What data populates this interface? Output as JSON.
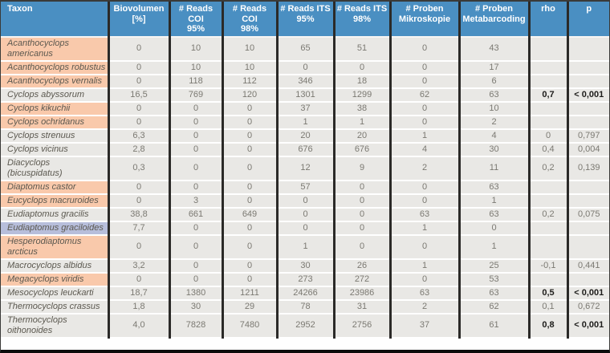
{
  "colors": {
    "header_bg": "#4a8fc2",
    "cell_bg": "#e9e8e5",
    "grid_dark": "#2b2a28",
    "highlight_orange": "#f9c9ab",
    "highlight_blue": "#b7bedb"
  },
  "chart_data": {
    "type": "table",
    "title": "",
    "columns": [
      {
        "label": "Taxon",
        "lines": [
          "Taxon"
        ]
      },
      {
        "label": "Biovolumen [%]",
        "lines": [
          "Biovolumen",
          "[%]"
        ]
      },
      {
        "label": "# Reads COI 95%",
        "lines": [
          "# Reads COI",
          "95%"
        ]
      },
      {
        "label": "# Reads COI 98%",
        "lines": [
          "# Reads COI",
          "98%"
        ]
      },
      {
        "label": "# Reads ITS 95%",
        "lines": [
          "# Reads ITS",
          "95%"
        ]
      },
      {
        "label": "# Reads ITS 98%",
        "lines": [
          "# Reads ITS",
          "98%"
        ]
      },
      {
        "label": "# Proben Mikroskopie",
        "lines": [
          "# Proben",
          "Mikroskopie"
        ]
      },
      {
        "label": "# Proben Metabarcoding",
        "lines": [
          "# Proben",
          "Metabarcoding"
        ]
      },
      {
        "label": "rho",
        "lines": [
          "rho"
        ]
      },
      {
        "label": "p",
        "lines": [
          "p"
        ]
      }
    ],
    "rows": [
      {
        "taxon": "Acanthocyclops americanus",
        "highlight": "orange",
        "values": [
          "0",
          "10",
          "10",
          "65",
          "51",
          "0",
          "43"
        ],
        "rho": "",
        "p": "",
        "bold_stats": false
      },
      {
        "taxon": "Acanthocyclops robustus",
        "highlight": "orange",
        "values": [
          "0",
          "10",
          "10",
          "0",
          "0",
          "0",
          "17"
        ],
        "rho": "",
        "p": "",
        "bold_stats": false
      },
      {
        "taxon": "Acanthocyclops vernalis",
        "highlight": "orange",
        "values": [
          "0",
          "118",
          "112",
          "346",
          "18",
          "0",
          "6"
        ],
        "rho": "",
        "p": "",
        "bold_stats": false
      },
      {
        "taxon": "Cyclops abyssorum",
        "highlight": "none",
        "values": [
          "16,5",
          "769",
          "120",
          "1301",
          "1299",
          "62",
          "63"
        ],
        "rho": "0,7",
        "p": "< 0,001",
        "bold_stats": true
      },
      {
        "taxon": "Cyclops kikuchii",
        "highlight": "orange",
        "values": [
          "0",
          "0",
          "0",
          "37",
          "38",
          "0",
          "10"
        ],
        "rho": "",
        "p": "",
        "bold_stats": false
      },
      {
        "taxon": "Cyclops ochridanus",
        "highlight": "orange",
        "values": [
          "0",
          "0",
          "0",
          "1",
          "1",
          "0",
          "2"
        ],
        "rho": "",
        "p": "",
        "bold_stats": false
      },
      {
        "taxon": "Cyclops strenuus",
        "highlight": "none",
        "values": [
          "6,3",
          "0",
          "0",
          "20",
          "20",
          "1",
          "4"
        ],
        "rho": "0",
        "p": "0,797",
        "bold_stats": false
      },
      {
        "taxon": "Cyclops vicinus",
        "highlight": "none",
        "values": [
          "2,8",
          "0",
          "0",
          "676",
          "676",
          "4",
          "30"
        ],
        "rho": "0,4",
        "p": "0,004",
        "bold_stats": false
      },
      {
        "taxon": "Diacyclops (bicuspidatus)",
        "highlight": "none",
        "values": [
          "0,3",
          "0",
          "0",
          "12",
          "9",
          "2",
          "11"
        ],
        "rho": "0,2",
        "p": "0,139",
        "bold_stats": false
      },
      {
        "taxon": "Diaptomus castor",
        "highlight": "orange",
        "values": [
          "0",
          "0",
          "0",
          "57",
          "0",
          "0",
          "63"
        ],
        "rho": "",
        "p": "",
        "bold_stats": false
      },
      {
        "taxon": "Eucyclops macruroides",
        "highlight": "orange",
        "values": [
          "0",
          "3",
          "0",
          "0",
          "0",
          "0",
          "1"
        ],
        "rho": "",
        "p": "",
        "bold_stats": false
      },
      {
        "taxon": "Eudiaptomus gracilis",
        "highlight": "none",
        "values": [
          "38,8",
          "661",
          "649",
          "0",
          "0",
          "63",
          "63"
        ],
        "rho": "0,2",
        "p": "0,075",
        "bold_stats": false
      },
      {
        "taxon": "Eudiaptomus graciloides",
        "highlight": "blue",
        "values": [
          "7,7",
          "0",
          "0",
          "0",
          "0",
          "1",
          "0"
        ],
        "rho": "",
        "p": "",
        "bold_stats": false
      },
      {
        "taxon": "Hesperodiaptomus arcticus",
        "highlight": "orange",
        "values": [
          "0",
          "0",
          "0",
          "1",
          "0",
          "0",
          "1"
        ],
        "rho": "",
        "p": "",
        "bold_stats": false
      },
      {
        "taxon": "Macrocyclops albidus",
        "highlight": "none",
        "values": [
          "3,2",
          "0",
          "0",
          "30",
          "26",
          "1",
          "25"
        ],
        "rho": "-0,1",
        "p": "0,441",
        "bold_stats": false
      },
      {
        "taxon": "Megacyclops viridis",
        "highlight": "orange",
        "values": [
          "0",
          "0",
          "0",
          "273",
          "272",
          "0",
          "53"
        ],
        "rho": "",
        "p": "",
        "bold_stats": false
      },
      {
        "taxon": "Mesocyclops leuckarti",
        "highlight": "none",
        "values": [
          "18,7",
          "1380",
          "1211",
          "24266",
          "23986",
          "63",
          "63"
        ],
        "rho": "0,5",
        "p": "< 0,001",
        "bold_stats": true
      },
      {
        "taxon": "Thermocyclops crassus",
        "highlight": "none",
        "values": [
          "1,8",
          "30",
          "29",
          "78",
          "31",
          "2",
          "62"
        ],
        "rho": "0,1",
        "p": "0,672",
        "bold_stats": false
      },
      {
        "taxon": "Thermocyclops oithonoides",
        "highlight": "none",
        "values": [
          "4,0",
          "7828",
          "7480",
          "2952",
          "2756",
          "37",
          "61"
        ],
        "rho": "0,8",
        "p": "< 0,001",
        "bold_stats": true
      }
    ]
  }
}
